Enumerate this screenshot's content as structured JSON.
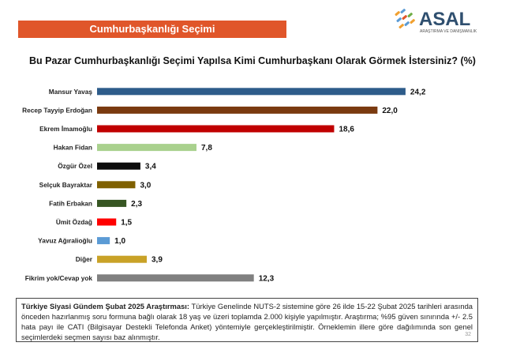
{
  "banner_title": "Cumhurbaşkanlığı Seçimi",
  "logo": {
    "name": "ASAL",
    "tagline": "ARAŞTIRMA VE DANIŞMANLIK"
  },
  "chart_data": {
    "type": "bar",
    "orientation": "horizontal",
    "title": "Bu Pazar Cumhurbaşkanlığı Seçimi Yapılsa Kimi Cumhurbaşkanı Olarak Görmek İstersiniz? (%)",
    "categories": [
      "Mansur Yavaş",
      "Recep Tayyip Erdoğan",
      "Ekrem İmamoğlu",
      "Hakan Fidan",
      "Özgür Özel",
      "Selçuk Bayraktar",
      "Fatih Erbakan",
      "Ümit Özdağ",
      "Yavuz Ağıralioğlu",
      "Diğer",
      "Fikrim yok/Cevap yok"
    ],
    "values": [
      24.2,
      22.0,
      18.6,
      7.8,
      3.4,
      3.0,
      2.3,
      1.5,
      1.0,
      3.9,
      12.3
    ],
    "value_labels": [
      "24,2",
      "22,0",
      "18,6",
      "7,8",
      "3,4",
      "3,0",
      "2,3",
      "1,5",
      "1,0",
      "3,9",
      "12,3"
    ],
    "colors": [
      "#2e5c8a",
      "#7a3a10",
      "#c00000",
      "#a9d18e",
      "#0d0d0d",
      "#7f6000",
      "#375623",
      "#ff0000",
      "#5b9bd5",
      "#c9a227",
      "#808080"
    ],
    "xlim": [
      0,
      26
    ],
    "grid": false,
    "legend": "none"
  },
  "footnote": {
    "heading": "Türkiye Siyasi Gündem Şubat 2025 Araştırması:",
    "text": "Türkiye Genelinde NUTS-2 sistemine göre 26 ilde 15-22 Şubat 2025 tarihleri arasında önceden hazırlanmış soru formuna bağlı olarak 18 yaş ve üzeri toplamda 2.000 kişiyle yapılmıştır. Araştırma; %95 güven sınırında +/- 2.5 hata payı ile CATI (Bilgisayar Destekli Telefonda Anket) yöntemiyle gerçekleştirilmiştir. Örneklemin illere göre dağılımında son genel seçimlerdeki seçmen sayısı baz alınmıştır."
  },
  "page_number": "32"
}
